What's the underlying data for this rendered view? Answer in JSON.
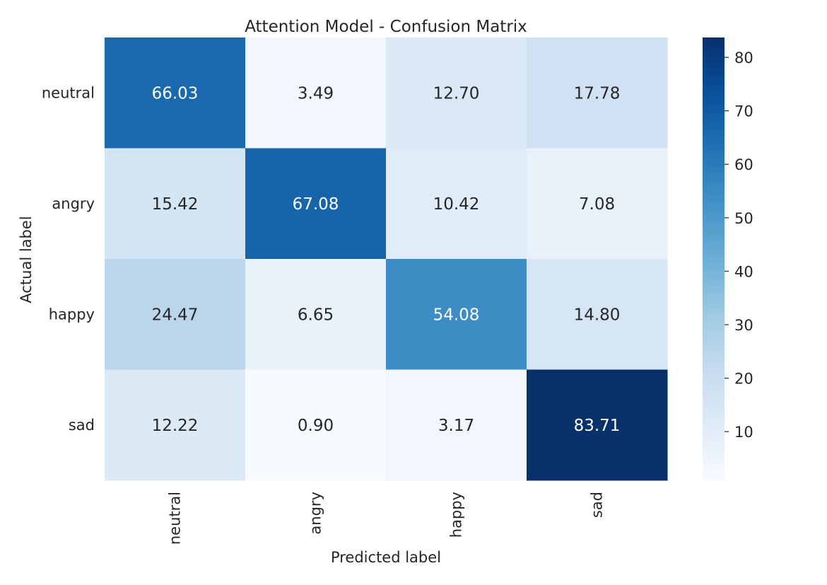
{
  "chart_data": {
    "type": "heatmap",
    "title": "Attention Model - Confusion Matrix",
    "xlabel": "Predicted label",
    "ylabel": "Actual label",
    "x_categories": [
      "neutral",
      "angry",
      "happy",
      "sad"
    ],
    "y_categories": [
      "neutral",
      "angry",
      "happy",
      "sad"
    ],
    "values": [
      [
        66.03,
        3.49,
        12.7,
        17.78
      ],
      [
        15.42,
        67.08,
        10.42,
        7.08
      ],
      [
        24.47,
        6.65,
        54.08,
        14.8
      ],
      [
        12.22,
        0.9,
        3.17,
        83.71
      ]
    ],
    "value_labels": [
      [
        "66.03",
        "3.49",
        "12.70",
        "17.78"
      ],
      [
        "15.42",
        "67.08",
        "10.42",
        "7.08"
      ],
      [
        "24.47",
        "6.65",
        "54.08",
        "14.80"
      ],
      [
        "12.22",
        "0.90",
        "3.17",
        "83.71"
      ]
    ],
    "colormap": "Blues",
    "colorbar": {
      "vmin": 0.9,
      "vmax": 83.71,
      "ticks": [
        10,
        20,
        30,
        40,
        50,
        60,
        70,
        80
      ],
      "tick_labels": [
        "10",
        "20",
        "30",
        "40",
        "50",
        "60",
        "70",
        "80"
      ]
    },
    "grid": false
  }
}
